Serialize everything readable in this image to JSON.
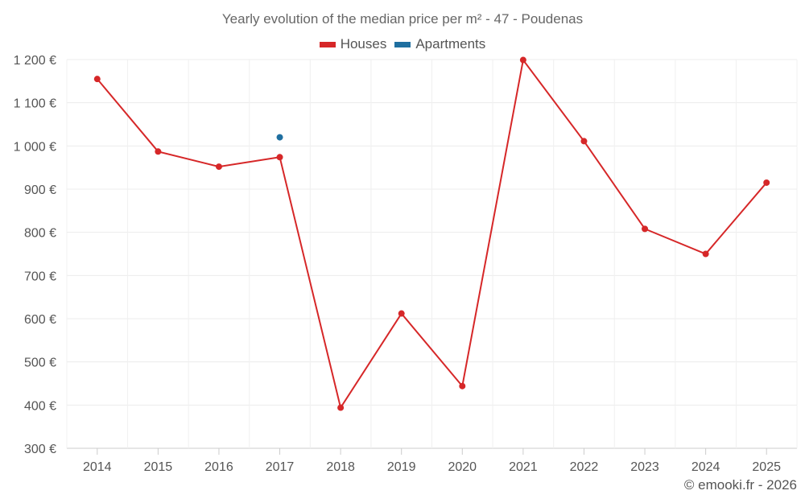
{
  "chart_data": {
    "type": "line",
    "title": "Yearly evolution of the median price per m² - 47 - Poudenas",
    "categories": [
      "2014",
      "2015",
      "2016",
      "2017",
      "2018",
      "2019",
      "2020",
      "2021",
      "2022",
      "2023",
      "2024",
      "2025"
    ],
    "series": [
      {
        "name": "Houses",
        "color": "#d62728",
        "values": [
          1155,
          987,
          952,
          974,
          394,
          612,
          444,
          1199,
          1011,
          808,
          750,
          915
        ]
      },
      {
        "name": "Apartments",
        "color": "#1f6fa0",
        "values": [
          null,
          null,
          null,
          1020,
          null,
          null,
          null,
          null,
          null,
          null,
          null,
          null
        ]
      }
    ],
    "y_ticks": [
      "1 200 €",
      "1 100 €",
      "1 000 €",
      "900 €",
      "800 €",
      "700 €",
      "600 €",
      "500 €",
      "400 €",
      "300 €"
    ],
    "y_tick_values": [
      1200,
      1100,
      1000,
      900,
      800,
      700,
      600,
      500,
      400,
      300
    ],
    "ylim": [
      300,
      1200
    ],
    "xlabel": "",
    "ylabel": "",
    "legend_position": "top-center",
    "grid": true
  },
  "credit": "© emooki.fr - 2026"
}
